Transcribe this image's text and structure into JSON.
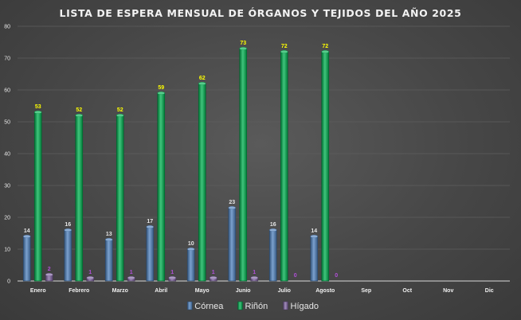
{
  "chart_data": {
    "type": "bar",
    "title": "LISTA DE ESPERA MENSUAL DE ÓRGANOS Y TEJIDOS  DEL AÑO 2025",
    "categories": [
      "Enero",
      "Febrero",
      "Marzo",
      "Abril",
      "Mayo",
      "Junio",
      "Julio",
      "Agosto",
      "Sep",
      "Oct",
      "Nov",
      "Dic"
    ],
    "series": [
      {
        "name": "Córnea",
        "color": "#4f81bd",
        "label_color": "#e6e6e6",
        "values": [
          14,
          16,
          13,
          17,
          10,
          23,
          16,
          14,
          null,
          null,
          null,
          null
        ]
      },
      {
        "name": "Riñón",
        "color": "#00b050",
        "label_color": "#ffff00",
        "values": [
          53,
          52,
          52,
          59,
          62,
          73,
          72,
          72,
          null,
          null,
          null,
          null
        ]
      },
      {
        "name": "Hígado",
        "color": "#8064a2",
        "label_color": "#b14fd8",
        "values": [
          2,
          1,
          1,
          1,
          1,
          1,
          0,
          0,
          null,
          null,
          null,
          null
        ]
      }
    ],
    "ylim": [
      0,
      80
    ],
    "yticks": [
      0,
      10,
      20,
      30,
      40,
      50,
      60,
      70,
      80
    ],
    "xlabel": "",
    "ylabel": "",
    "grid": true,
    "legend": "bottom-center"
  }
}
